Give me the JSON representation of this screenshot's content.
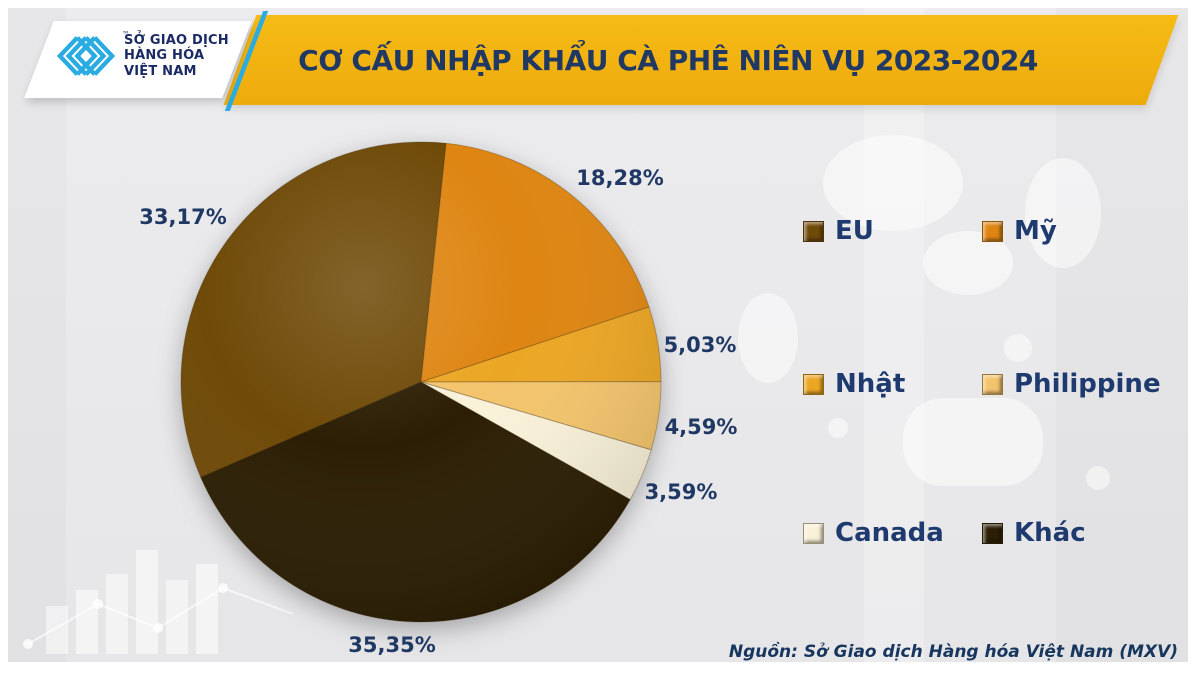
{
  "header": {
    "logo": {
      "line1": "SỞ GIAO DỊCH",
      "line2": "HÀNG HÓA",
      "line3": "VIỆT NAM",
      "trademark": "™"
    },
    "title": "CƠ CẤU NHẬP KHẨU CÀ PHÊ NIÊN VỤ 2023-2024"
  },
  "colors": {
    "banner_gold": "#F1B110",
    "title_navy": "#1F3864",
    "logo_cyan": "#2AACE3",
    "background_gray": "#E9E9EB"
  },
  "chart_data": {
    "type": "pie",
    "title": "CƠ CẤU NHẬP KHẨU CÀ PHÊ NIÊN VỤ 2023-2024",
    "unit": "%",
    "decimal_separator": ",",
    "direction": "clockwise",
    "start_angle_deg": 246.6,
    "legend_position": "right",
    "legend_columns": 2,
    "slices": [
      {
        "label": "EU",
        "value": 33.17,
        "pct_label": "33,17%",
        "color": "#6F4A08"
      },
      {
        "label": "Mỹ",
        "value": 18.28,
        "pct_label": "18,28%",
        "color": "#DE8512"
      },
      {
        "label": "Nhật",
        "value": 5.03,
        "pct_label": "5,03%",
        "color": "#EBA624"
      },
      {
        "label": "Philippine",
        "value": 4.59,
        "pct_label": "4,59%",
        "color": "#F3C46C"
      },
      {
        "label": "Canada",
        "value": 3.59,
        "pct_label": "3,59%",
        "color": "#F9F1D8"
      },
      {
        "label": "Khác",
        "value": 35.35,
        "pct_label": "35,35%",
        "color": "#2B1E04"
      }
    ]
  },
  "footer": {
    "source": "Nguồn: Sở Giao dịch Hàng hóa Việt Nam (MXV)"
  }
}
